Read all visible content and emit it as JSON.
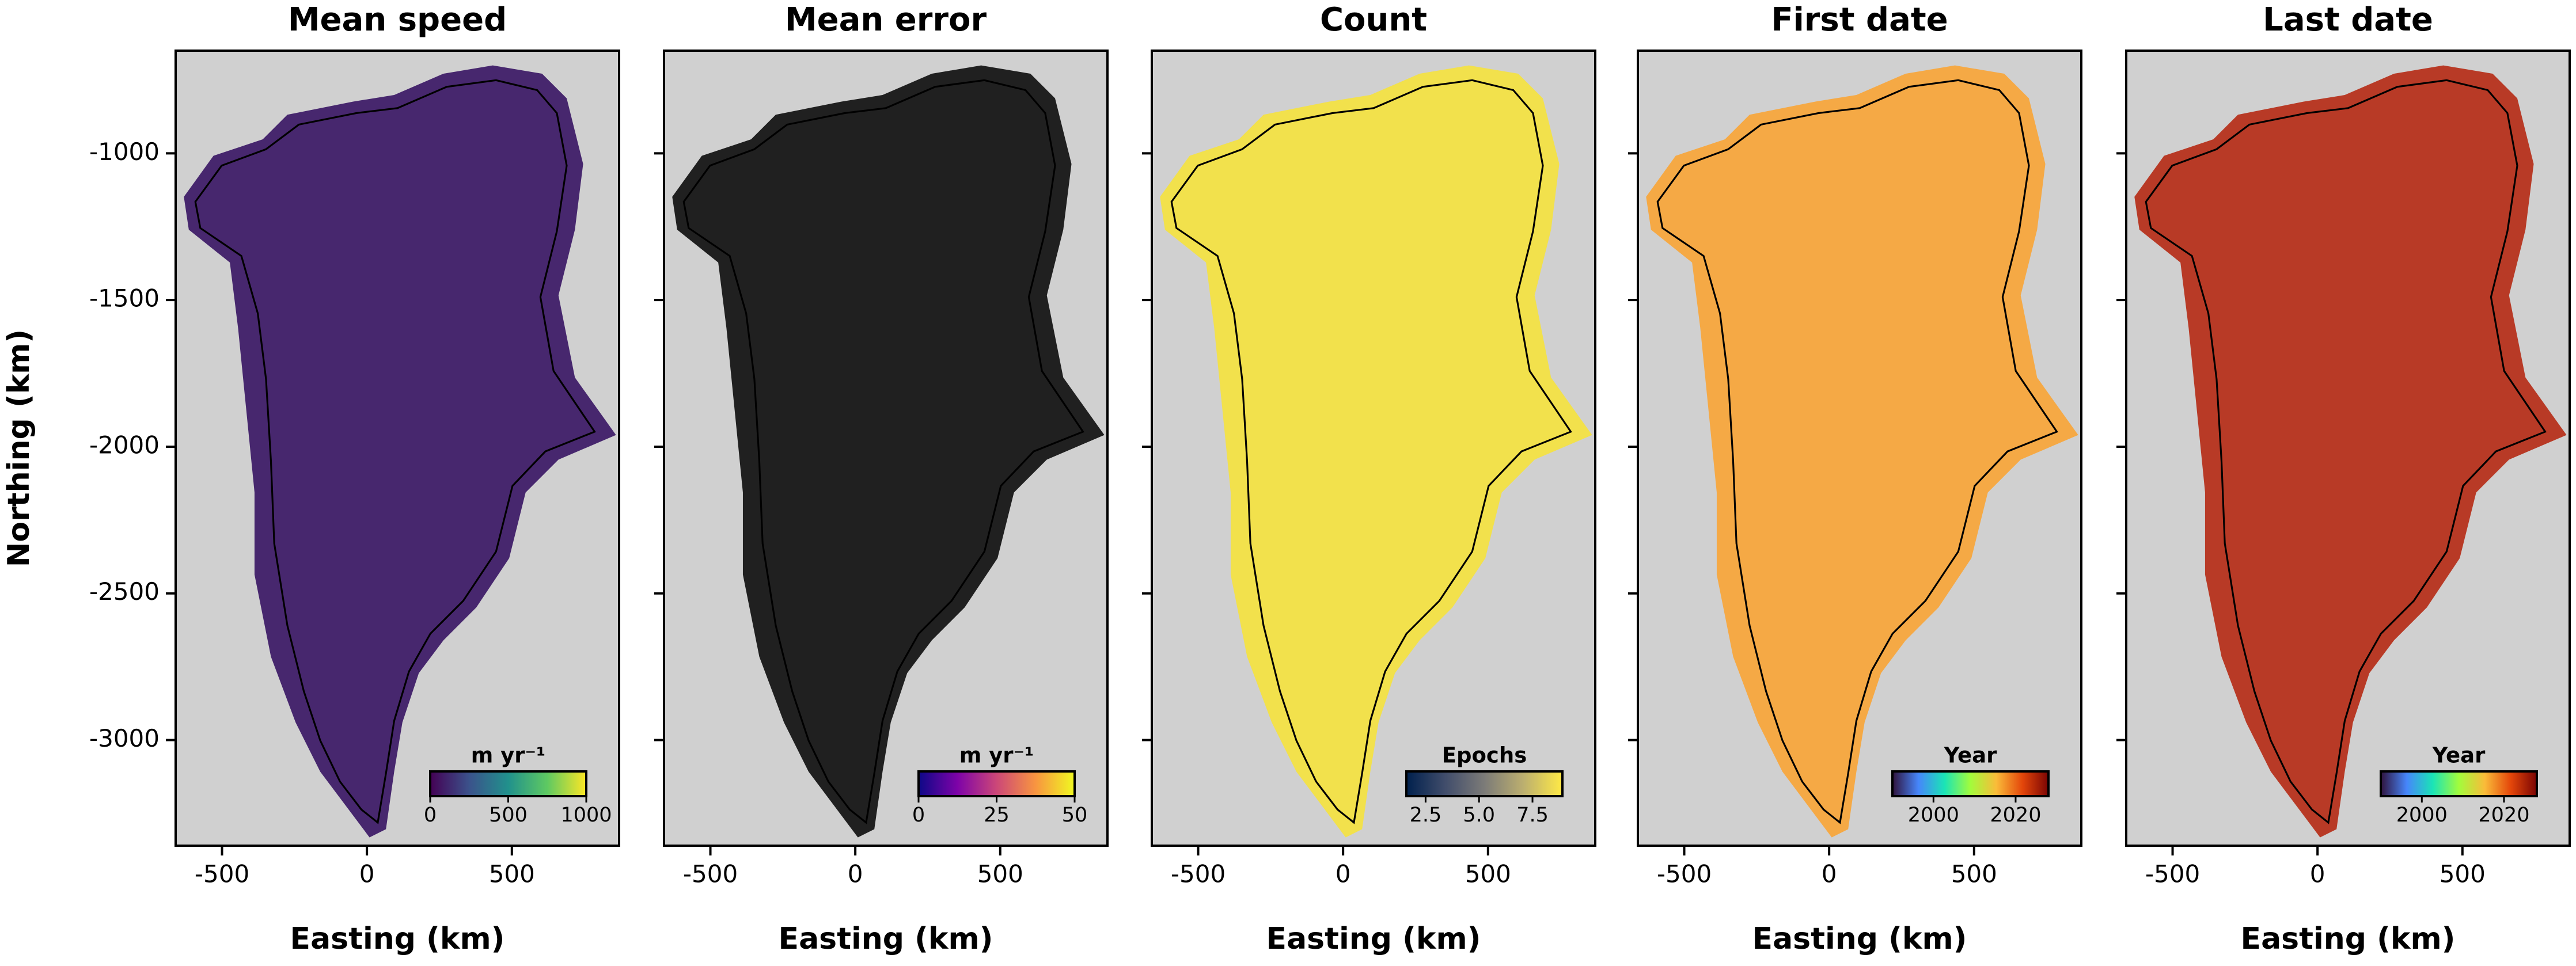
{
  "chart_data": [
    {
      "type": "map",
      "title": "Mean speed",
      "xlabel": "Easting (km)",
      "ylabel": "Northing (km)",
      "xlim": [
        -660,
        870
      ],
      "ylim": [
        -3360,
        -650
      ],
      "xticks": [
        -500,
        0,
        500
      ],
      "yticks": [
        -1000,
        -1500,
        -2000,
        -2500,
        -3000
      ],
      "show_ytick_labels": true,
      "background": "#d0d0d0",
      "color": "#47276e",
      "colorbar": {
        "label": "m yr⁻¹",
        "lim": [
          0,
          1000
        ],
        "ticks": [
          0,
          500,
          1000
        ],
        "colors": [
          "#440154",
          "#3b528b",
          "#21918c",
          "#5ec962",
          "#fde725"
        ]
      }
    },
    {
      "type": "map",
      "title": "Mean error",
      "xlabel": "Easting (km)",
      "xlim": [
        -660,
        870
      ],
      "ylim": [
        -3360,
        -650
      ],
      "xticks": [
        -500,
        0,
        500
      ],
      "yticks": [
        -1000,
        -1500,
        -2000,
        -2500,
        -3000
      ],
      "show_ytick_labels": false,
      "background": "#d0d0d0",
      "color": "#202020",
      "colorbar": {
        "label": "m yr⁻¹",
        "lim": [
          0,
          50
        ],
        "ticks": [
          0,
          25,
          50
        ],
        "colors": [
          "#0d0887",
          "#7e03a8",
          "#cc4778",
          "#f89540",
          "#f0f921"
        ]
      }
    },
    {
      "type": "map",
      "title": "Count",
      "xlabel": "Easting (km)",
      "xlim": [
        -660,
        870
      ],
      "ylim": [
        -3360,
        -650
      ],
      "xticks": [
        -500,
        0,
        500
      ],
      "yticks": [
        -1000,
        -1500,
        -2000,
        -2500,
        -3000
      ],
      "show_ytick_labels": false,
      "background": "#d0d0d0",
      "color": "#f2e14c",
      "colorbar": {
        "label": "Epochs",
        "lim": [
          1.6,
          8.9
        ],
        "ticks": [
          2.5,
          {
            "value": 5,
            "label": "5.0"
          },
          7.5
        ],
        "colors": [
          "#00204d",
          "#414d6b",
          "#7c7b78",
          "#bcaf6f",
          "#ffea46"
        ]
      }
    },
    {
      "type": "map",
      "title": "First date",
      "xlabel": "Easting (km)",
      "xlim": [
        -660,
        870
      ],
      "ylim": [
        -3360,
        -650
      ],
      "xticks": [
        -500,
        0,
        500
      ],
      "yticks": [
        -1000,
        -1500,
        -2000,
        -2500,
        -3000
      ],
      "show_ytick_labels": false,
      "background": "#d0d0d0",
      "color": "#f5a945",
      "colorbar": {
        "label": "Year",
        "lim": [
          1990,
          2028
        ],
        "ticks": [
          2000,
          2020
        ],
        "colors": [
          "#30123b",
          "#4686fb",
          "#1ae4b6",
          "#a2fc3c",
          "#fabb39",
          "#e4460a",
          "#7a0403"
        ]
      }
    },
    {
      "type": "map",
      "title": "Last date",
      "xlabel": "Easting (km)",
      "xlim": [
        -660,
        870
      ],
      "ylim": [
        -3360,
        -650
      ],
      "xticks": [
        -500,
        0,
        500
      ],
      "yticks": [
        -1000,
        -1500,
        -2000,
        -2500,
        -3000
      ],
      "show_ytick_labels": false,
      "background": "#d0d0d0",
      "color": "#b83a26",
      "colorbar": {
        "label": "Year",
        "lim": [
          1990,
          2028
        ],
        "ticks": [
          2000,
          2020
        ],
        "colors": [
          "#30123b",
          "#4686fb",
          "#1ae4b6",
          "#a2fc3c",
          "#fabb39",
          "#e4460a",
          "#7a0403"
        ]
      }
    }
  ]
}
